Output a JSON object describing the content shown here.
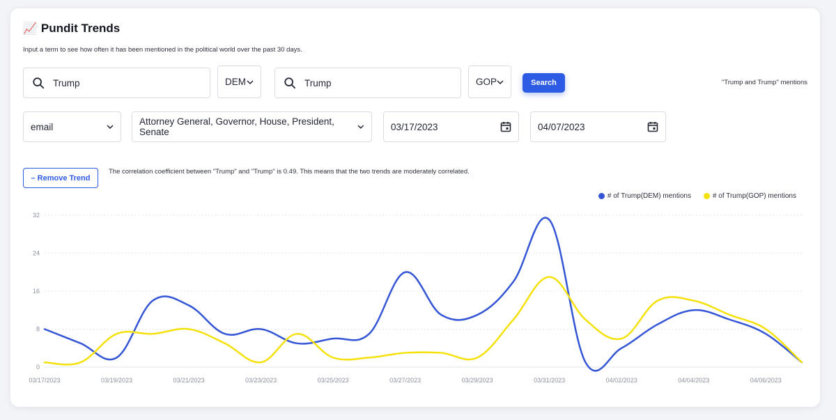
{
  "header": {
    "emoji": "📈",
    "title": "Pundit Trends",
    "subtitle": "Input a term to see how often it has been mentioned in the political world over the past 30 days."
  },
  "query": {
    "term1": {
      "value": "Trump",
      "party": "DEM"
    },
    "term2": {
      "value": "Trump",
      "party": "GOP"
    },
    "search_label": "Search",
    "mentions_label": "\"Trump and Trump\" mentions"
  },
  "filters": {
    "source": "email",
    "offices": "Attorney General, Governor, House, President, Senate",
    "start_date": "03/17/2023",
    "end_date": "04/07/2023"
  },
  "trend": {
    "remove_label": "– Remove Trend",
    "correlation_text": "The correlation coefficient between \"Trump\" and \"Trump\" is 0.49. This means that the two trends are moderately correlated."
  },
  "colors": {
    "accent": "#2d5be3",
    "dem": "#3355d6",
    "gop": "#f5e10a"
  },
  "chart_data": {
    "type": "line",
    "x": [
      "03/17/2023",
      "03/18/2023",
      "03/19/2023",
      "03/20/2023",
      "03/21/2023",
      "03/22/2023",
      "03/23/2023",
      "03/24/2023",
      "03/25/2023",
      "03/26/2023",
      "03/27/2023",
      "03/28/2023",
      "03/29/2023",
      "03/30/2023",
      "03/31/2023",
      "04/01/2023",
      "04/02/2023",
      "04/03/2023",
      "04/04/2023",
      "04/05/2023",
      "04/06/2023",
      "04/07/2023"
    ],
    "x_tick_labels": [
      "03/17/2023",
      "03/19/2023",
      "03/21/2023",
      "03/23/2023",
      "03/25/2023",
      "03/27/2023",
      "03/29/2023",
      "03/31/2023",
      "04/02/2023",
      "04/04/2023",
      "04/06/2023"
    ],
    "y_ticks": [
      0,
      8,
      16,
      24,
      32
    ],
    "ylim": [
      0,
      32
    ],
    "grid": true,
    "legend_position": "top-right",
    "series": [
      {
        "name": "# of Trump(DEM) mentions",
        "color": "#3355d6",
        "values": [
          8,
          5,
          2,
          14,
          13,
          7,
          8,
          5,
          6,
          7,
          20,
          11,
          11,
          18,
          31,
          1,
          4,
          9,
          12,
          10,
          7,
          1
        ]
      },
      {
        "name": "# of Trump(GOP) mentions",
        "color": "#f5e10a",
        "values": [
          1,
          1,
          7,
          7,
          8,
          5,
          1,
          7,
          2,
          2,
          3,
          3,
          2,
          10,
          19,
          10,
          6,
          14,
          14,
          11,
          8,
          1
        ]
      }
    ]
  }
}
